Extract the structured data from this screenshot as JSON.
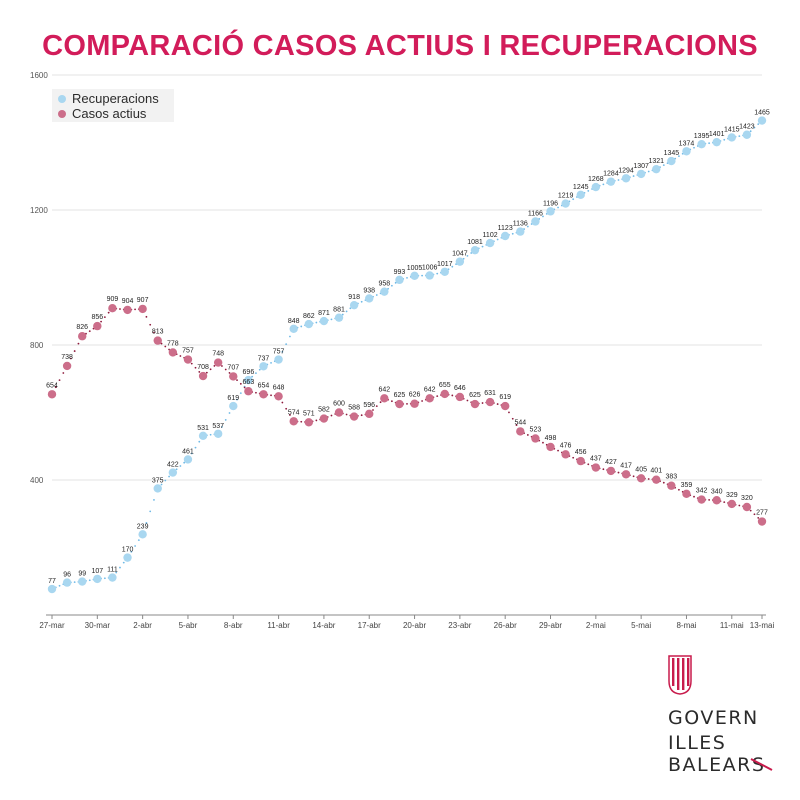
{
  "title": "COMPARACIÓ CASOS ACTIUS I RECUPERACIONS",
  "colors": {
    "title": "#d21c5a",
    "recuperacions": "#a9d7f0",
    "casos": "#cc6e8a",
    "casos_dots": "#8e1a3c",
    "rec_dots": "#6fb9e6",
    "grid": "#e3e3e3"
  },
  "logo": {
    "lines": [
      "GOVERN",
      "ILLES",
      "BALEARS"
    ],
    "emblem": "coat-of-arms-icon"
  },
  "chart_data": {
    "type": "line",
    "title": "COMPARACIÓ CASOS ACTIUS I RECUPERACIONS",
    "xlabel": "",
    "ylabel": "",
    "ylim": [
      0,
      1600
    ],
    "yticks": [
      400,
      800,
      1200,
      1600
    ],
    "grid": true,
    "legend_position": "top-left",
    "x_tick_labels": [
      "27-mar",
      "30-mar",
      "2-abr",
      "5-abr",
      "8-abr",
      "11-abr",
      "14-abr",
      "17-abr",
      "20-abr",
      "23-abr",
      "26-abr",
      "29-abr",
      "2-mai",
      "5-mai",
      "8-mai",
      "11-mai",
      "13-mai"
    ],
    "series": [
      {
        "name": "Recuperacions",
        "values": [
          77,
          96,
          99,
          107,
          111,
          170,
          239,
          375,
          422,
          461,
          531,
          537,
          619,
          696,
          737,
          757,
          848,
          862,
          871,
          881,
          918,
          938,
          958,
          993,
          1005,
          1006,
          1017,
          1047,
          1081,
          1102,
          1123,
          1136,
          1166,
          1196,
          1219,
          1245,
          1268,
          1284,
          1294,
          1307,
          1321,
          1345,
          1374,
          1395,
          1401,
          1415,
          1423,
          1465
        ]
      },
      {
        "name": "Casos actius",
        "values": [
          654,
          738,
          826,
          856,
          909,
          904,
          907,
          813,
          778,
          757,
          708,
          748,
          707,
          663,
          654,
          648,
          574,
          571,
          582,
          600,
          588,
          596,
          642,
          625,
          626,
          642,
          655,
          646,
          625,
          631,
          619,
          544,
          523,
          498,
          476,
          456,
          437,
          427,
          417,
          405,
          401,
          383,
          359,
          342,
          340,
          329,
          320,
          277
        ]
      }
    ]
  }
}
